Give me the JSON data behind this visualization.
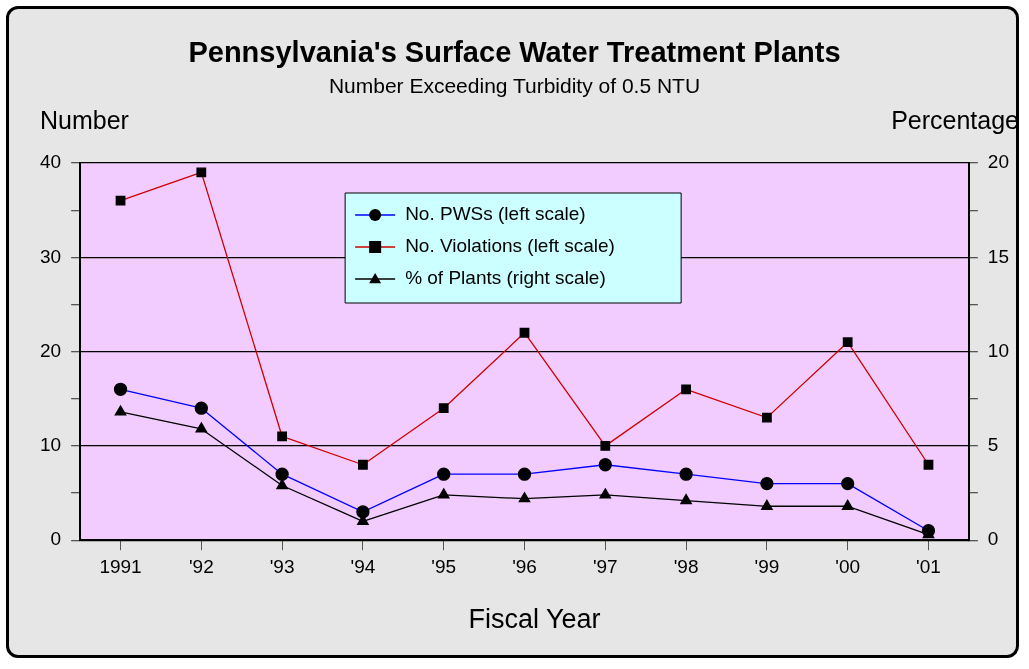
{
  "chart_data": {
    "type": "line",
    "title": "Pennsylvania's Surface Water Treatment Plants",
    "subtitle": "Number Exceeding Turbidity of 0.5 NTU",
    "xlabel": "Fiscal Year",
    "ylabel": "Number",
    "y2label": "Percentage",
    "categories": [
      "1991",
      "'92",
      "'93",
      "'94",
      "'95",
      "'96",
      "'97",
      "'98",
      "'99",
      "'00",
      "'01"
    ],
    "series": [
      {
        "name": "No. PWSs (left scale)",
        "color": "#0000ff",
        "marker": "circle",
        "values": [
          16,
          14,
          7,
          3,
          7,
          7,
          8,
          7,
          6,
          6,
          1
        ]
      },
      {
        "name": "No. Violations (left scale)",
        "color": "#cc0000",
        "marker": "square",
        "values": [
          36,
          39,
          11,
          8,
          14,
          22,
          10,
          16,
          13,
          21,
          8
        ]
      },
      {
        "name": "% of Plants (right scale)",
        "color": "#000000",
        "marker": "triangle",
        "axis": "y2",
        "values": [
          6.8,
          5.9,
          2.9,
          1.0,
          2.4,
          2.2,
          2.4,
          2.1,
          1.8,
          1.8,
          0.3
        ]
      }
    ],
    "ylim": [
      0,
      40
    ],
    "yticks": [
      0,
      {
        "value": 5,
        "label": null
      },
      10,
      {
        "value": 15,
        "label": null
      },
      20,
      {
        "value": 25,
        "label": null
      },
      30,
      {
        "value": 35,
        "label": null
      },
      40
    ],
    "y2lim": [
      0,
      20
    ],
    "y2ticks": [
      0,
      {
        "value": 2.5,
        "label": null
      },
      5,
      {
        "value": 7.5,
        "label": null
      },
      10,
      {
        "value": 12.5,
        "label": null
      },
      15,
      {
        "value": 17.5,
        "label": null
      },
      20
    ],
    "grid": "y",
    "legend": "top",
    "line_style": "solid"
  }
}
